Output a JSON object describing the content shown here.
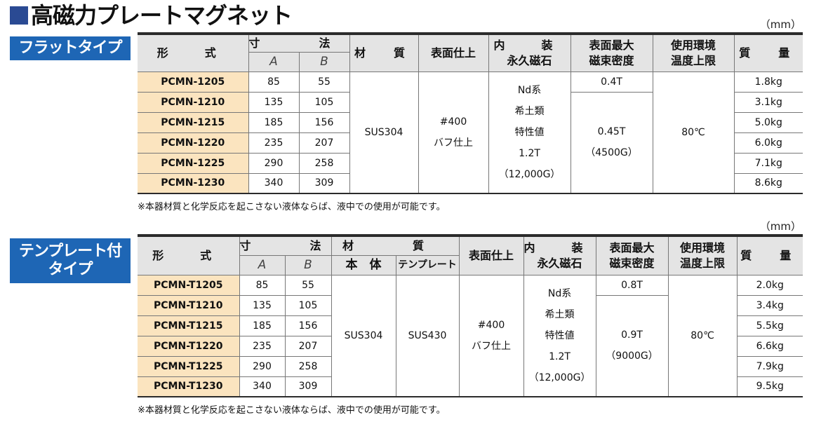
{
  "page_title": "高磁力プレートマグネット",
  "sections": [
    {
      "badge_lines": [
        "フラットタイプ"
      ],
      "unit": "（mm）",
      "headers": {
        "model": "形　式",
        "dimension": "寸　法",
        "dim_a": "A",
        "dim_b": "B",
        "material": "材　質",
        "finish": "表面仕上",
        "magnet_line1": "内　装",
        "magnet_line2": "永久磁石",
        "flux_line1": "表面最大",
        "flux_line2": "磁束密度",
        "temp_line1": "使用環境",
        "temp_line2": "温度上限",
        "weight": "質　量"
      },
      "rows": [
        {
          "model": "PCMN-1205",
          "a": "85",
          "b": "55",
          "weight": "1.8kg"
        },
        {
          "model": "PCMN-1210",
          "a": "135",
          "b": "105",
          "weight": "3.1kg"
        },
        {
          "model": "PCMN-1215",
          "a": "185",
          "b": "156",
          "weight": "5.0kg"
        },
        {
          "model": "PCMN-1220",
          "a": "235",
          "b": "207",
          "weight": "6.0kg"
        },
        {
          "model": "PCMN-1225",
          "a": "290",
          "b": "258",
          "weight": "7.1kg"
        },
        {
          "model": "PCMN-1230",
          "a": "340",
          "b": "309",
          "weight": "8.6kg"
        }
      ],
      "material": "SUS304",
      "finish_line1": "#400",
      "finish_line2": "バフ仕上",
      "magnet_lines": [
        "Nd系",
        "希土類",
        "特性値",
        "1.2T",
        "（12,000G）"
      ],
      "flux_first": "0.4T",
      "flux_rest_line1": "0.45T",
      "flux_rest_line2": "（4500G）",
      "temp": "80℃",
      "note": "※本器材質と化学反応を起こさない液体ならば、液中での使用が可能です。"
    },
    {
      "badge_lines": [
        "テンプレート付",
        "タイプ"
      ],
      "unit": "（mm）",
      "headers": {
        "model": "形　式",
        "dimension": "寸　法",
        "dim_a": "A",
        "dim_b": "B",
        "material": "材　質",
        "material_body": "本　体",
        "material_template": "テンプレート",
        "finish": "表面仕上",
        "magnet_line1": "内　装",
        "magnet_line2": "永久磁石",
        "flux_line1": "表面最大",
        "flux_line2": "磁束密度",
        "temp_line1": "使用環境",
        "temp_line2": "温度上限",
        "weight": "質　量"
      },
      "rows": [
        {
          "model": "PCMN-T1205",
          "a": "85",
          "b": "55",
          "weight": "2.0kg"
        },
        {
          "model": "PCMN-T1210",
          "a": "135",
          "b": "105",
          "weight": "3.4kg"
        },
        {
          "model": "PCMN-T1215",
          "a": "185",
          "b": "156",
          "weight": "5.5kg"
        },
        {
          "model": "PCMN-T1220",
          "a": "235",
          "b": "207",
          "weight": "6.6kg"
        },
        {
          "model": "PCMN-T1225",
          "a": "290",
          "b": "258",
          "weight": "7.9kg"
        },
        {
          "model": "PCMN-T1230",
          "a": "340",
          "b": "309",
          "weight": "9.5kg"
        }
      ],
      "material_body": "SUS304",
      "material_template": "SUS430",
      "finish_line1": "#400",
      "finish_line2": "バフ仕上",
      "magnet_lines": [
        "Nd系",
        "希土類",
        "特性値",
        "1.2T",
        "（12,000G）"
      ],
      "flux_first": "0.8T",
      "flux_rest_line1": "0.9T",
      "flux_rest_line2": "（9000G）",
      "temp": "80℃",
      "note": "※本器材質と化学反応を起こさない液体ならば、液中での使用が可能です。"
    }
  ]
}
